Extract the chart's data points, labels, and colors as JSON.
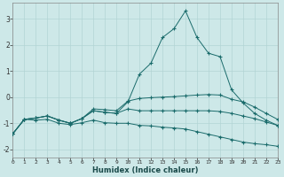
{
  "xlabel": "Humidex (Indice chaleur)",
  "xlim": [
    0,
    23
  ],
  "ylim": [
    -2.3,
    3.6
  ],
  "bg_color": "#cde8e8",
  "grid_color": "#b2d4d4",
  "line_color": "#1a6b6b",
  "x": [
    0,
    1,
    2,
    3,
    4,
    5,
    6,
    7,
    8,
    9,
    10,
    11,
    12,
    13,
    14,
    15,
    16,
    17,
    18,
    19,
    20,
    21,
    22,
    23
  ],
  "line_peak": [
    -1.4,
    -0.85,
    -0.8,
    -0.72,
    -0.88,
    -1.0,
    -0.82,
    -0.52,
    -0.58,
    -0.62,
    -0.18,
    0.88,
    1.3,
    2.28,
    2.62,
    3.3,
    2.28,
    1.68,
    1.55,
    0.28,
    -0.22,
    -0.62,
    -0.88,
    -1.08
  ],
  "line_upper": [
    -1.4,
    -0.85,
    -0.8,
    -0.72,
    -0.88,
    -1.0,
    -0.82,
    -0.45,
    -0.48,
    -0.52,
    -0.15,
    -0.05,
    -0.02,
    0.0,
    0.02,
    0.05,
    0.08,
    0.1,
    0.08,
    -0.08,
    -0.18,
    -0.38,
    -0.62,
    -0.85
  ],
  "line_mid": [
    -1.4,
    -0.85,
    -0.8,
    -0.72,
    -0.88,
    -1.0,
    -0.82,
    -0.52,
    -0.58,
    -0.62,
    -0.45,
    -0.52,
    -0.52,
    -0.52,
    -0.52,
    -0.52,
    -0.52,
    -0.52,
    -0.55,
    -0.62,
    -0.72,
    -0.82,
    -0.95,
    -1.08
  ],
  "line_bot": [
    -1.4,
    -0.85,
    -0.88,
    -0.85,
    -1.0,
    -1.05,
    -0.98,
    -0.88,
    -0.98,
    -1.0,
    -1.0,
    -1.08,
    -1.1,
    -1.15,
    -1.18,
    -1.22,
    -1.32,
    -1.42,
    -1.52,
    -1.62,
    -1.72,
    -1.78,
    -1.82,
    -1.88
  ]
}
